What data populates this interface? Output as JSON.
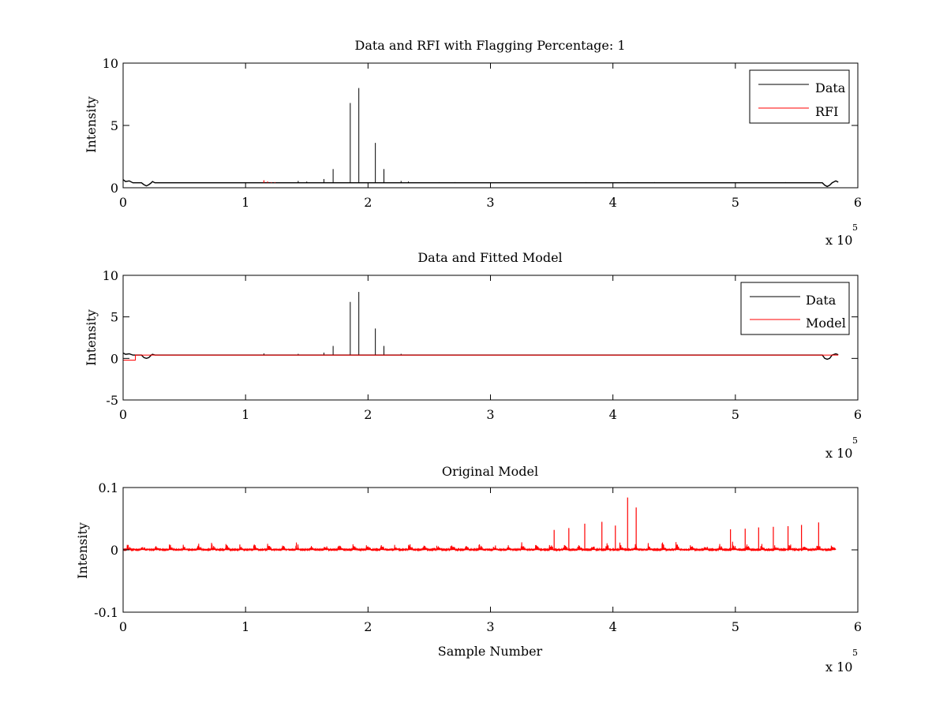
{
  "colors": {
    "data": "#000000",
    "rfi": "#ff0000",
    "model": "#ff0000",
    "axes": "#000000",
    "background": "#ffffff"
  },
  "chart_data": [
    {
      "type": "line",
      "title": "Data and RFI with Flagging Percentage: 1",
      "xlabel": "",
      "ylabel": "Intensity",
      "xlim": [
        0,
        600000
      ],
      "ylim": [
        0,
        10
      ],
      "x_ticks": [
        0,
        100000,
        200000,
        300000,
        400000,
        500000,
        600000
      ],
      "x_tick_labels": [
        "0",
        "1",
        "2",
        "3",
        "4",
        "5",
        "6"
      ],
      "y_ticks": [
        0,
        5,
        10
      ],
      "y_tick_labels": [
        "0",
        "5",
        "10"
      ],
      "x_multiplier": {
        "base": "x 10",
        "exponent": "5"
      },
      "grid": false,
      "legend": "top-right",
      "baseline": 0.4,
      "series": [
        {
          "name": "Data",
          "color": "#000000",
          "spikes": [
            {
              "x": 185500,
              "y": 6.8
            },
            {
              "x": 192500,
              "y": 8.0
            },
            {
              "x": 206000,
              "y": 3.6
            },
            {
              "x": 171500,
              "y": 1.5
            },
            {
              "x": 213000,
              "y": 1.5
            },
            {
              "x": 164000,
              "y": 0.7
            },
            {
              "x": 143000,
              "y": 0.55
            },
            {
              "x": 150000,
              "y": 0.5
            },
            {
              "x": 227000,
              "y": 0.55
            },
            {
              "x": 233000,
              "y": 0.5
            },
            {
              "x": 258000,
              "y": 0.45
            },
            {
              "x": 271000,
              "y": 0.45
            },
            {
              "x": 378000,
              "y": 0.45
            },
            {
              "x": 412000,
              "y": 0.45
            },
            {
              "x": 434000,
              "y": 0.45
            },
            {
              "x": 541000,
              "y": 0.45
            }
          ],
          "bumps": [
            {
              "x": 0,
              "y": 0.6
            },
            {
              "x": 5000,
              "y": 0.55
            },
            {
              "x": 24000,
              "y": 0.5
            },
            {
              "x": 580000,
              "y": 0.55
            },
            {
              "x": 584000,
              "y": 0.5
            }
          ],
          "dips": [
            {
              "x": 19000,
              "y": 0.15
            },
            {
              "x": 575000,
              "y": 0.1
            }
          ]
        },
        {
          "name": "RFI",
          "color": "#ff0000",
          "spikes": [
            {
              "x": 115000,
              "y": 0.6
            },
            {
              "x": 118000,
              "y": 0.5
            },
            {
              "x": 121000,
              "y": 0.45
            },
            {
              "x": 124000,
              "y": 0.45
            }
          ]
        }
      ]
    },
    {
      "type": "line",
      "title": "Data and Fitted Model",
      "xlabel": "",
      "ylabel": "Intensity",
      "xlim": [
        0,
        600000
      ],
      "ylim": [
        -5,
        10
      ],
      "x_ticks": [
        0,
        100000,
        200000,
        300000,
        400000,
        500000,
        600000
      ],
      "x_tick_labels": [
        "0",
        "1",
        "2",
        "3",
        "4",
        "5",
        "6"
      ],
      "y_ticks": [
        -5,
        0,
        5,
        10
      ],
      "y_tick_labels": [
        "-5",
        "0",
        "5",
        "10"
      ],
      "x_multiplier": {
        "base": "x 10",
        "exponent": "5"
      },
      "grid": false,
      "legend": "top-right",
      "baseline": 0.4,
      "series": [
        {
          "name": "Data",
          "color": "#000000",
          "spikes": [
            {
              "x": 185500,
              "y": 6.8
            },
            {
              "x": 192500,
              "y": 8.0
            },
            {
              "x": 206000,
              "y": 3.6
            },
            {
              "x": 171500,
              "y": 1.5
            },
            {
              "x": 213000,
              "y": 1.5
            },
            {
              "x": 164000,
              "y": 0.7
            },
            {
              "x": 115000,
              "y": 0.6
            },
            {
              "x": 143000,
              "y": 0.55
            },
            {
              "x": 227000,
              "y": 0.55
            },
            {
              "x": 258000,
              "y": 0.45
            }
          ],
          "bumps": [
            {
              "x": 0,
              "y": 0.6
            },
            {
              "x": 24000,
              "y": 0.5
            },
            {
              "x": 584000,
              "y": 0.5
            }
          ],
          "dips": [
            {
              "x": 19000,
              "y": 0.0
            },
            {
              "x": 575000,
              "y": -0.1
            }
          ]
        },
        {
          "name": "Model",
          "color": "#ff0000",
          "step": {
            "x_start": 0,
            "x_end": 10000,
            "y": -0.2
          },
          "level": 0.4
        }
      ]
    },
    {
      "type": "line",
      "title": "Original Model",
      "xlabel": "Sample Number",
      "ylabel": "Intensity",
      "xlim": [
        0,
        600000
      ],
      "ylim": [
        -0.1,
        0.1
      ],
      "x_ticks": [
        0,
        100000,
        200000,
        300000,
        400000,
        500000,
        600000
      ],
      "x_tick_labels": [
        "0",
        "1",
        "2",
        "3",
        "4",
        "5",
        "6"
      ],
      "y_ticks": [
        -0.1,
        0,
        0.1
      ],
      "y_tick_labels": [
        "-0.1",
        "0",
        "0.1"
      ],
      "x_multiplier": {
        "base": "x 10",
        "exponent": "5"
      },
      "grid": false,
      "series": [
        {
          "color": "#ff0000",
          "x_range": [
            0,
            582000
          ],
          "periodic_bursts": {
            "period": 11500,
            "start": 3000
          },
          "spikes": [
            {
              "x": 412000,
              "y": 0.084
            },
            {
              "x": 419000,
              "y": 0.068
            },
            {
              "x": 391000,
              "y": 0.045
            },
            {
              "x": 568000,
              "y": 0.044
            },
            {
              "x": 377000,
              "y": 0.042
            },
            {
              "x": 554000,
              "y": 0.04
            },
            {
              "x": 402000,
              "y": 0.039
            },
            {
              "x": 543000,
              "y": 0.038
            },
            {
              "x": 531000,
              "y": 0.037
            },
            {
              "x": 519000,
              "y": 0.036
            },
            {
              "x": 364000,
              "y": 0.035
            },
            {
              "x": 508000,
              "y": 0.034
            },
            {
              "x": 496000,
              "y": 0.033
            },
            {
              "x": 352000,
              "y": 0.032
            }
          ]
        }
      ]
    }
  ]
}
